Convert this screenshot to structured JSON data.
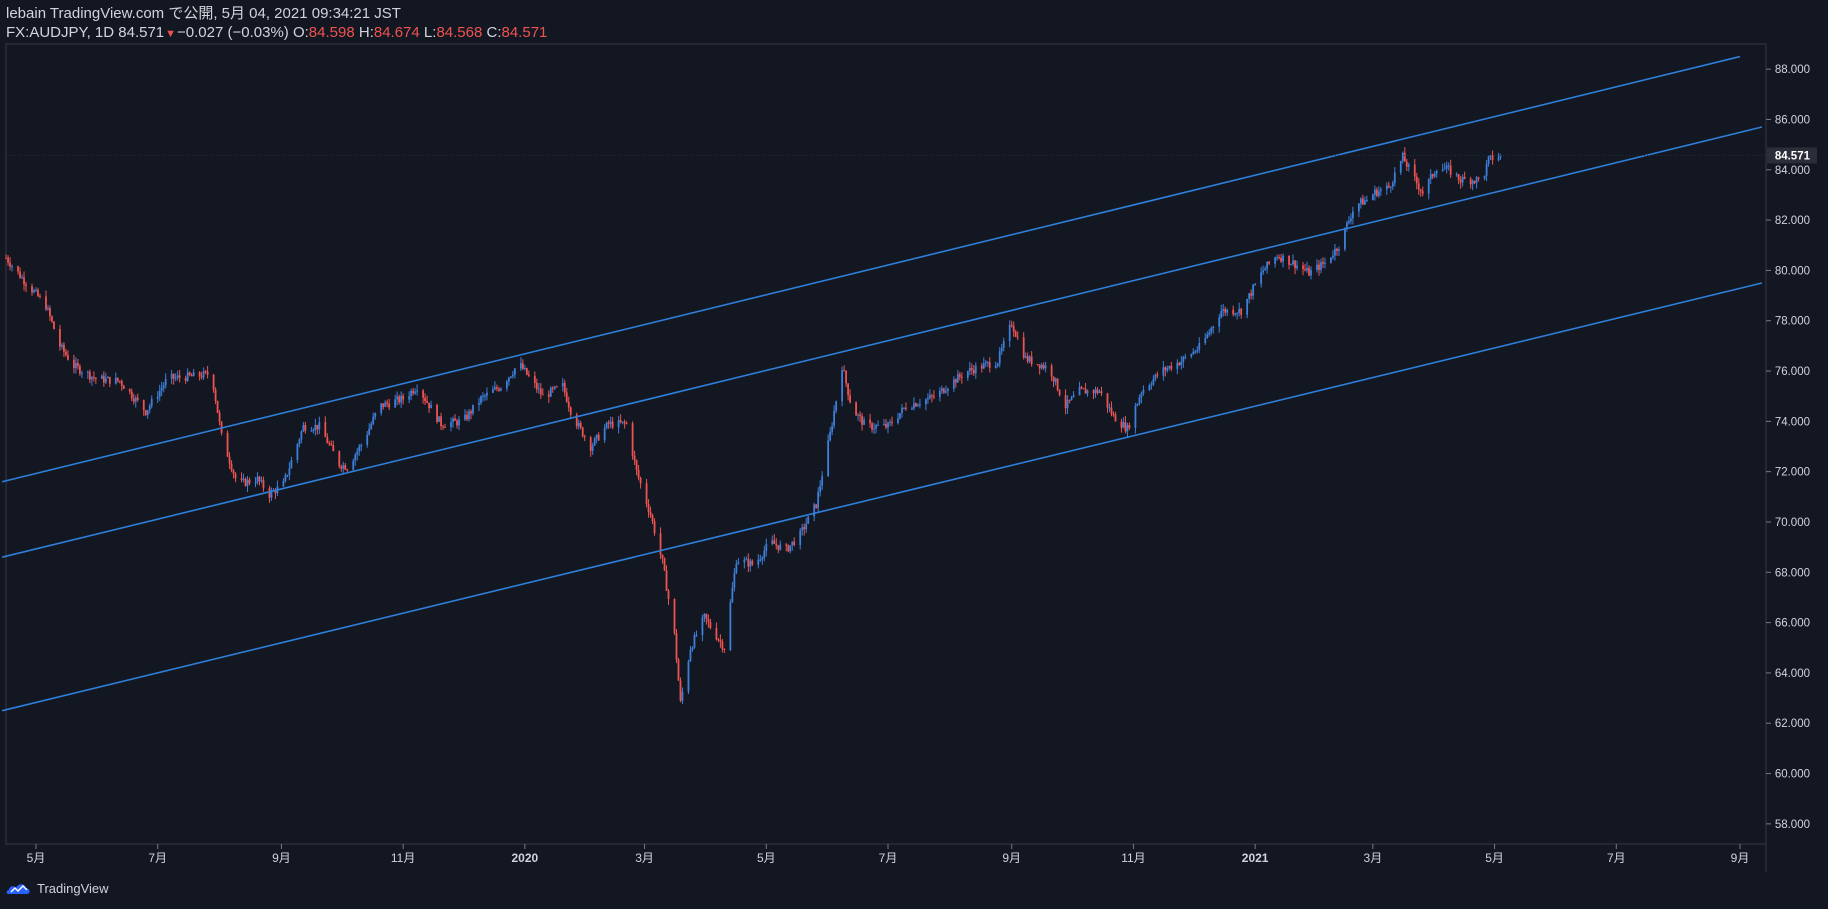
{
  "header": {
    "publisher_line": "lebain TradingView.com で公開, 5月 04, 2021 09:34:21 JST",
    "symbol": "FX:AUDJPY, 1D 84.571",
    "down_arrow": "▼",
    "change": "−0.027 (−0.03%)",
    "o_label": " O:",
    "o_value": "84.598",
    "h_label": " H:",
    "h_value": "84.674",
    "l_label": " L:",
    "l_value": "84.568",
    "c_label": " C:",
    "c_value": "84.571"
  },
  "footer": {
    "brand": "TradingView"
  },
  "colors": {
    "background": "#131722",
    "up": "#2962ff",
    "up_candle": "#3d7fd9",
    "down": "#ef5350",
    "channel": "#2e7fd9",
    "text": "#d1d4dc",
    "last_price_label_bg": "#2a2e39"
  },
  "chart_data": {
    "type": "candlestick",
    "symbol": "FX:AUDJPY",
    "interval": "1D",
    "y_range": [
      57.2,
      89.0
    ],
    "y_ticks": [
      "58.000",
      "60.000",
      "62.000",
      "64.000",
      "66.000",
      "68.000",
      "70.000",
      "72.000",
      "74.000",
      "76.000",
      "78.000",
      "80.000",
      "82.000",
      "84.000",
      "86.000",
      "88.000"
    ],
    "last_price": "84.571",
    "x_ticks": [
      {
        "label": "5月",
        "date": "2019-05-01"
      },
      {
        "label": "7月",
        "date": "2019-07-01"
      },
      {
        "label": "9月",
        "date": "2019-09-01"
      },
      {
        "label": "11月",
        "date": "2019-11-01"
      },
      {
        "label": "2020",
        "date": "2020-01-01"
      },
      {
        "label": "3月",
        "date": "2020-03-01"
      },
      {
        "label": "5月",
        "date": "2020-05-01"
      },
      {
        "label": "7月",
        "date": "2020-07-01"
      },
      {
        "label": "9月",
        "date": "2020-09-01"
      },
      {
        "label": "11月",
        "date": "2020-11-01"
      },
      {
        "label": "2021",
        "date": "2021-01-01"
      },
      {
        "label": "3月",
        "date": "2021-03-01"
      },
      {
        "label": "5月",
        "date": "2021-05-01"
      },
      {
        "label": "7月",
        "date": "2021-07-01"
      },
      {
        "label": "9月",
        "date": "2021-09-01"
      }
    ],
    "price_path": [
      [
        "2019-04-16",
        80.5
      ],
      [
        "2019-04-25",
        79.6
      ],
      [
        "2019-05-06",
        78.6
      ],
      [
        "2019-05-13",
        77.0
      ],
      [
        "2019-05-20",
        76.2
      ],
      [
        "2019-05-31",
        75.7
      ],
      [
        "2019-06-12",
        75.6
      ],
      [
        "2019-06-25",
        74.4
      ],
      [
        "2019-07-06",
        75.7
      ],
      [
        "2019-07-20",
        75.8
      ],
      [
        "2019-07-28",
        75.9
      ],
      [
        "2019-08-02",
        73.4
      ],
      [
        "2019-08-10",
        71.5
      ],
      [
        "2019-08-20",
        71.7
      ],
      [
        "2019-08-26",
        71.1
      ],
      [
        "2019-09-02",
        71.5
      ],
      [
        "2019-09-12",
        73.8
      ],
      [
        "2019-09-20",
        73.8
      ],
      [
        "2019-09-30",
        72.3
      ],
      [
        "2019-10-04",
        72.2
      ],
      [
        "2019-10-12",
        73.2
      ],
      [
        "2019-10-20",
        74.6
      ],
      [
        "2019-11-01",
        74.9
      ],
      [
        "2019-11-08",
        75.4
      ],
      [
        "2019-11-20",
        73.9
      ],
      [
        "2019-12-01",
        74.0
      ],
      [
        "2019-12-10",
        74.9
      ],
      [
        "2019-12-20",
        75.4
      ],
      [
        "2019-12-29",
        76.3
      ],
      [
        "2020-01-10",
        75.0
      ],
      [
        "2020-01-20",
        75.4
      ],
      [
        "2020-01-25",
        74.2
      ],
      [
        "2020-02-03",
        73.0
      ],
      [
        "2020-02-12",
        73.9
      ],
      [
        "2020-02-21",
        73.9
      ],
      [
        "2020-02-26",
        72.0
      ],
      [
        "2020-03-04",
        70.3
      ],
      [
        "2020-03-10",
        68.4
      ],
      [
        "2020-03-16",
        65.5
      ],
      [
        "2020-03-19",
        62.8
      ],
      [
        "2020-03-24",
        65.0
      ],
      [
        "2020-03-31",
        66.2
      ],
      [
        "2020-04-10",
        65.0
      ],
      [
        "2020-04-16",
        68.5
      ],
      [
        "2020-04-25",
        68.3
      ],
      [
        "2020-05-03",
        69.2
      ],
      [
        "2020-05-11",
        68.9
      ],
      [
        "2020-05-18",
        69.5
      ],
      [
        "2020-05-26",
        70.7
      ],
      [
        "2020-06-02",
        73.5
      ],
      [
        "2020-06-08",
        76.2
      ],
      [
        "2020-06-13",
        74.5
      ],
      [
        "2020-06-20",
        73.8
      ],
      [
        "2020-07-01",
        73.8
      ],
      [
        "2020-07-10",
        74.6
      ],
      [
        "2020-07-25",
        75.0
      ],
      [
        "2020-08-01",
        75.5
      ],
      [
        "2020-08-10",
        76.0
      ],
      [
        "2020-08-25",
        76.4
      ],
      [
        "2020-09-01",
        77.9
      ],
      [
        "2020-09-08",
        76.5
      ],
      [
        "2020-09-20",
        76.1
      ],
      [
        "2020-09-28",
        74.6
      ],
      [
        "2020-10-05",
        75.2
      ],
      [
        "2020-10-15",
        75.2
      ],
      [
        "2020-10-22",
        74.2
      ],
      [
        "2020-10-29",
        73.7
      ],
      [
        "2020-11-05",
        75.2
      ],
      [
        "2020-11-15",
        76.0
      ],
      [
        "2020-11-25",
        76.4
      ],
      [
        "2020-12-05",
        77.0
      ],
      [
        "2020-12-15",
        78.4
      ],
      [
        "2020-12-25",
        78.4
      ],
      [
        "2021-01-05",
        80.0
      ],
      [
        "2021-01-12",
        80.6
      ],
      [
        "2021-01-20",
        80.3
      ],
      [
        "2021-01-28",
        79.9
      ],
      [
        "2021-02-05",
        80.3
      ],
      [
        "2021-02-12",
        81.0
      ],
      [
        "2021-02-20",
        82.6
      ],
      [
        "2021-02-26",
        82.8
      ],
      [
        "2021-03-02",
        83.1
      ],
      [
        "2021-03-09",
        83.3
      ],
      [
        "2021-03-16",
        84.5
      ],
      [
        "2021-03-22",
        83.6
      ],
      [
        "2021-03-26",
        83.1
      ],
      [
        "2021-04-02",
        84.1
      ],
      [
        "2021-04-08",
        84.0
      ],
      [
        "2021-04-14",
        83.6
      ],
      [
        "2021-04-20",
        83.6
      ],
      [
        "2021-04-25",
        83.6
      ],
      [
        "2021-04-28",
        84.4
      ],
      [
        "2021-05-04",
        84.571
      ]
    ],
    "channel_lines": [
      {
        "name": "upper",
        "from": [
          "2019-04-14",
          71.6
        ],
        "to": [
          "2021-09-01",
          88.5
        ]
      },
      {
        "name": "middle",
        "from": [
          "2019-04-14",
          68.6
        ],
        "to": [
          "2021-09-12",
          85.7
        ]
      },
      {
        "name": "lower",
        "from": [
          "2019-04-14",
          62.5
        ],
        "to": [
          "2021-09-12",
          79.5
        ]
      }
    ]
  }
}
